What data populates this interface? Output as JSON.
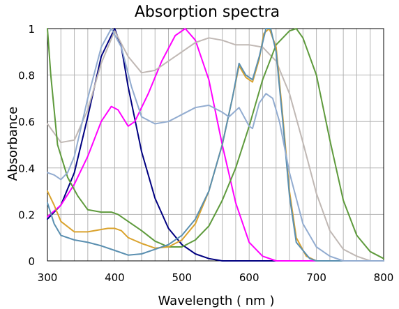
{
  "chart_data": {
    "type": "line",
    "title": "Absorption spectra",
    "xlabel": "Wavelength ( nm )",
    "ylabel": "Absorbance",
    "xlim": [
      300,
      800
    ],
    "ylim": [
      0,
      1
    ],
    "x_ticks": [
      300,
      400,
      500,
      600,
      700,
      800
    ],
    "y_ticks": [
      0,
      0.2,
      0.4,
      0.6,
      0.8,
      1
    ],
    "y_tick_labels": [
      "0",
      "0.2",
      "0.4",
      "0.6",
      "0.8",
      "1"
    ],
    "grid": {
      "vertical_step": 20,
      "horizontal_step": 0.2
    },
    "legend": "none",
    "series": [
      {
        "color": "#000080",
        "points": [
          [
            300,
            0.18
          ],
          [
            320,
            0.24
          ],
          [
            340,
            0.38
          ],
          [
            360,
            0.62
          ],
          [
            380,
            0.88
          ],
          [
            400,
            1.0
          ],
          [
            410,
            0.92
          ],
          [
            420,
            0.75
          ],
          [
            440,
            0.47
          ],
          [
            460,
            0.27
          ],
          [
            480,
            0.14
          ],
          [
            500,
            0.07
          ],
          [
            520,
            0.03
          ],
          [
            540,
            0.01
          ],
          [
            560,
            0.0
          ],
          [
            600,
            0.0
          ],
          [
            800,
            0.0
          ]
        ]
      },
      {
        "color": "#FF00FF",
        "points": [
          [
            300,
            0.19
          ],
          [
            320,
            0.24
          ],
          [
            340,
            0.33
          ],
          [
            360,
            0.45
          ],
          [
            380,
            0.6
          ],
          [
            395,
            0.665
          ],
          [
            405,
            0.65
          ],
          [
            420,
            0.58
          ],
          [
            430,
            0.6
          ],
          [
            450,
            0.72
          ],
          [
            470,
            0.86
          ],
          [
            490,
            0.97
          ],
          [
            505,
            1.0
          ],
          [
            520,
            0.95
          ],
          [
            540,
            0.78
          ],
          [
            560,
            0.5
          ],
          [
            580,
            0.25
          ],
          [
            600,
            0.08
          ],
          [
            620,
            0.02
          ],
          [
            640,
            0.0
          ],
          [
            800,
            0.0
          ]
        ]
      },
      {
        "color": "#C0B8B4",
        "points": [
          [
            300,
            0.59
          ],
          [
            320,
            0.51
          ],
          [
            340,
            0.52
          ],
          [
            360,
            0.65
          ],
          [
            380,
            0.85
          ],
          [
            400,
            0.99
          ],
          [
            420,
            0.88
          ],
          [
            440,
            0.81
          ],
          [
            460,
            0.82
          ],
          [
            480,
            0.86
          ],
          [
            500,
            0.9
          ],
          [
            520,
            0.94
          ],
          [
            540,
            0.96
          ],
          [
            560,
            0.95
          ],
          [
            580,
            0.93
          ],
          [
            600,
            0.93
          ],
          [
            620,
            0.92
          ],
          [
            640,
            0.86
          ],
          [
            660,
            0.72
          ],
          [
            680,
            0.51
          ],
          [
            700,
            0.29
          ],
          [
            720,
            0.13
          ],
          [
            740,
            0.05
          ],
          [
            760,
            0.02
          ],
          [
            780,
            0.0
          ],
          [
            800,
            0.0
          ]
        ]
      },
      {
        "color": "#5E9A3C",
        "points": [
          [
            300,
            1.0
          ],
          [
            305,
            0.8
          ],
          [
            315,
            0.5
          ],
          [
            330,
            0.36
          ],
          [
            345,
            0.28
          ],
          [
            360,
            0.22
          ],
          [
            380,
            0.21
          ],
          [
            395,
            0.21
          ],
          [
            405,
            0.2
          ],
          [
            420,
            0.17
          ],
          [
            440,
            0.13
          ],
          [
            460,
            0.085
          ],
          [
            480,
            0.06
          ],
          [
            500,
            0.06
          ],
          [
            520,
            0.09
          ],
          [
            540,
            0.15
          ],
          [
            560,
            0.26
          ],
          [
            580,
            0.4
          ],
          [
            600,
            0.58
          ],
          [
            620,
            0.78
          ],
          [
            640,
            0.93
          ],
          [
            660,
            0.99
          ],
          [
            670,
            1.0
          ],
          [
            680,
            0.96
          ],
          [
            700,
            0.8
          ],
          [
            720,
            0.52
          ],
          [
            740,
            0.26
          ],
          [
            760,
            0.11
          ],
          [
            780,
            0.04
          ],
          [
            800,
            0.01
          ]
        ]
      },
      {
        "color": "#DAA32E",
        "points": [
          [
            300,
            0.3
          ],
          [
            310,
            0.24
          ],
          [
            320,
            0.17
          ],
          [
            340,
            0.125
          ],
          [
            360,
            0.125
          ],
          [
            380,
            0.135
          ],
          [
            390,
            0.14
          ],
          [
            400,
            0.14
          ],
          [
            410,
            0.13
          ],
          [
            420,
            0.1
          ],
          [
            440,
            0.075
          ],
          [
            460,
            0.055
          ],
          [
            480,
            0.06
          ],
          [
            500,
            0.09
          ],
          [
            520,
            0.16
          ],
          [
            540,
            0.3
          ],
          [
            560,
            0.5
          ],
          [
            575,
            0.7
          ],
          [
            585,
            0.84
          ],
          [
            595,
            0.79
          ],
          [
            605,
            0.77
          ],
          [
            615,
            0.87
          ],
          [
            622,
            0.98
          ],
          [
            630,
            1.0
          ],
          [
            640,
            0.92
          ],
          [
            650,
            0.62
          ],
          [
            660,
            0.3
          ],
          [
            670,
            0.1
          ],
          [
            685,
            0.02
          ],
          [
            700,
            0.0
          ],
          [
            800,
            0.0
          ]
        ]
      },
      {
        "color": "#5A8FB0",
        "points": [
          [
            300,
            0.25
          ],
          [
            310,
            0.16
          ],
          [
            320,
            0.11
          ],
          [
            340,
            0.09
          ],
          [
            360,
            0.08
          ],
          [
            380,
            0.065
          ],
          [
            400,
            0.045
          ],
          [
            420,
            0.025
          ],
          [
            440,
            0.03
          ],
          [
            460,
            0.05
          ],
          [
            480,
            0.07
          ],
          [
            500,
            0.11
          ],
          [
            520,
            0.18
          ],
          [
            540,
            0.3
          ],
          [
            560,
            0.5
          ],
          [
            575,
            0.7
          ],
          [
            585,
            0.85
          ],
          [
            595,
            0.8
          ],
          [
            605,
            0.78
          ],
          [
            615,
            0.88
          ],
          [
            625,
            1.0
          ],
          [
            632,
            1.0
          ],
          [
            640,
            0.9
          ],
          [
            650,
            0.6
          ],
          [
            660,
            0.28
          ],
          [
            670,
            0.08
          ],
          [
            690,
            0.01
          ],
          [
            700,
            0.0
          ],
          [
            800,
            0.0
          ]
        ]
      },
      {
        "color": "#92ACD0",
        "points": [
          [
            300,
            0.38
          ],
          [
            310,
            0.37
          ],
          [
            320,
            0.35
          ],
          [
            330,
            0.38
          ],
          [
            340,
            0.45
          ],
          [
            360,
            0.7
          ],
          [
            380,
            0.92
          ],
          [
            395,
            1.0
          ],
          [
            410,
            0.92
          ],
          [
            425,
            0.75
          ],
          [
            440,
            0.62
          ],
          [
            460,
            0.59
          ],
          [
            480,
            0.6
          ],
          [
            500,
            0.63
          ],
          [
            520,
            0.66
          ],
          [
            540,
            0.67
          ],
          [
            560,
            0.64
          ],
          [
            570,
            0.62
          ],
          [
            585,
            0.66
          ],
          [
            600,
            0.58
          ],
          [
            605,
            0.57
          ],
          [
            615,
            0.68
          ],
          [
            625,
            0.72
          ],
          [
            635,
            0.7
          ],
          [
            645,
            0.6
          ],
          [
            660,
            0.38
          ],
          [
            680,
            0.16
          ],
          [
            700,
            0.06
          ],
          [
            720,
            0.02
          ],
          [
            740,
            0.0
          ],
          [
            800,
            0.0
          ]
        ]
      }
    ]
  }
}
